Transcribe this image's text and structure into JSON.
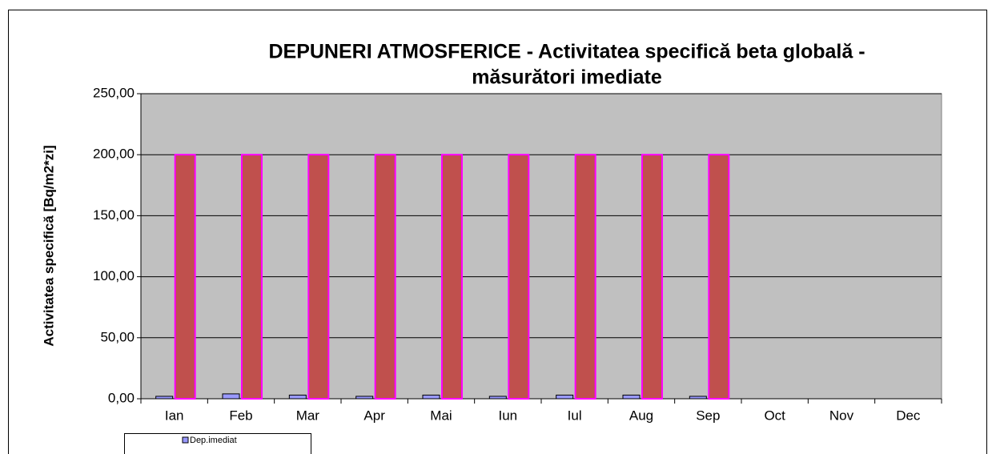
{
  "chart_data": {
    "type": "bar",
    "title": [
      "DEPUNERI ATMOSFERICE - Activitatea specifică beta globală -",
      "măsurători imediate"
    ],
    "y_label": "Activitatea specifică  [Bq/m2*zi]",
    "categories": [
      "Ian",
      "Feb",
      "Mar",
      "Apr",
      "Mai",
      "Iun",
      "Iul",
      "Aug",
      "Sep",
      "Oct",
      "Nov",
      "Dec"
    ],
    "series": [
      {
        "name": "Dep.imediat",
        "color": "#9999ff",
        "values": [
          2,
          4,
          3,
          2,
          3,
          2,
          3,
          3,
          2,
          null,
          null,
          null
        ]
      },
      {
        "color": "#c0504d",
        "values": [
          200,
          200,
          200,
          200,
          200,
          200,
          200,
          200,
          200,
          null,
          null,
          null
        ]
      }
    ],
    "ylim": [
      0,
      250
    ],
    "yticks": [
      {
        "value": 0,
        "label": "0,00"
      },
      {
        "value": 50,
        "label": "50,00"
      },
      {
        "value": 100,
        "label": "100,00"
      },
      {
        "value": 150,
        "label": "150,00"
      },
      {
        "value": 200,
        "label": "200,00"
      },
      {
        "value": 250,
        "label": "250,00"
      }
    ],
    "grid": true
  }
}
